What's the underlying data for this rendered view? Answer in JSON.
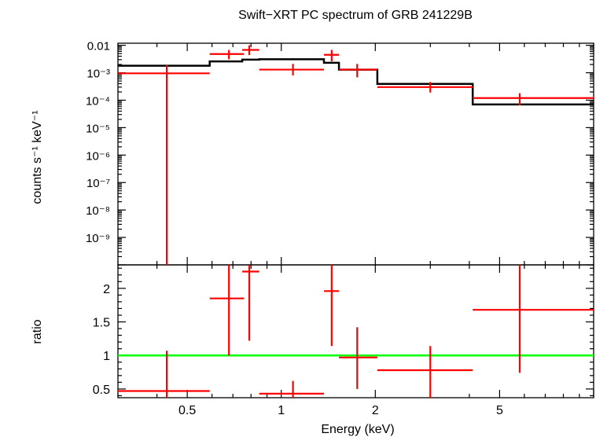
{
  "chart_data": [
    {
      "type": "scatter",
      "panel": "top",
      "title": "Swift−XRT PC spectrum of GRB 241229B",
      "xlabel": "",
      "ylabel": "counts s⁻¹ keV⁻¹",
      "xscale": "log",
      "yscale": "log",
      "xlim": [
        0.3,
        10
      ],
      "ylim": [
        1e-10,
        0.0119
      ],
      "y_ticks": [
        {
          "value": 0.01,
          "label": "0.01"
        },
        {
          "value": 0.001,
          "label": "10⁻³"
        },
        {
          "value": 0.0001,
          "label": "10⁻⁴"
        },
        {
          "value": 1e-05,
          "label": "10⁻⁵"
        },
        {
          "value": 1e-06,
          "label": "10⁻⁶"
        },
        {
          "value": 1e-07,
          "label": "10⁻⁷"
        },
        {
          "value": 1e-08,
          "label": "10⁻⁸"
        },
        {
          "value": 1e-09,
          "label": "10⁻⁹"
        }
      ],
      "series": [
        {
          "name": "data",
          "color": "#ff0000",
          "points": [
            {
              "x": 0.43,
              "xlo": 0.3,
              "xhi": 0.59,
              "y": 0.00095,
              "ylo": 1e-10,
              "yhi": 0.0019
            },
            {
              "x": 0.68,
              "xlo": 0.59,
              "xhi": 0.76,
              "y": 0.0048,
              "ylo": 0.0031,
              "yhi": 0.0068
            },
            {
              "x": 0.79,
              "xlo": 0.75,
              "xhi": 0.85,
              "y": 0.0068,
              "ylo": 0.0044,
              "yhi": 0.01
            },
            {
              "x": 1.09,
              "xlo": 0.85,
              "xhi": 1.37,
              "y": 0.0013,
              "ylo": 0.0008,
              "yhi": 0.0021
            },
            {
              "x": 1.45,
              "xlo": 1.37,
              "xhi": 1.53,
              "y": 0.0045,
              "ylo": 0.0026,
              "yhi": 0.0068
            },
            {
              "x": 1.75,
              "xlo": 1.53,
              "xhi": 2.03,
              "y": 0.0013,
              "ylo": 0.00068,
              "yhi": 0.0021
            },
            {
              "x": 3.0,
              "xlo": 2.03,
              "xhi": 4.1,
              "y": 0.0003,
              "ylo": 0.00019,
              "yhi": 0.00046
            },
            {
              "x": 5.8,
              "xlo": 4.1,
              "xhi": 10,
              "y": 0.00012,
              "ylo": 6.5e-05,
              "yhi": 0.00018
            }
          ]
        },
        {
          "name": "model",
          "color": "#000000",
          "style": "step",
          "bins": [
            {
              "xlo": 0.3,
              "xhi": 0.59,
              "y": 0.0018
            },
            {
              "xlo": 0.59,
              "xhi": 0.75,
              "y": 0.0026
            },
            {
              "xlo": 0.75,
              "xhi": 0.85,
              "y": 0.003
            },
            {
              "xlo": 0.85,
              "xhi": 1.37,
              "y": 0.0031
            },
            {
              "xlo": 1.37,
              "xhi": 1.53,
              "y": 0.0023
            },
            {
              "xlo": 1.53,
              "xhi": 2.03,
              "y": 0.0013
            },
            {
              "xlo": 2.03,
              "xhi": 4.1,
              "y": 0.00039
            },
            {
              "xlo": 4.1,
              "xhi": 10,
              "y": 7e-05
            }
          ]
        }
      ]
    },
    {
      "type": "scatter",
      "panel": "bottom",
      "xlabel": "Energy (keV)",
      "ylabel": "ratio",
      "xscale": "log",
      "xlim": [
        0.3,
        10
      ],
      "ylim": [
        0.37,
        2.35
      ],
      "x_ticks": [
        {
          "value": 0.5,
          "label": "0.5"
        },
        {
          "value": 1,
          "label": "1"
        },
        {
          "value": 2,
          "label": "2"
        },
        {
          "value": 5,
          "label": "5"
        }
      ],
      "y_ticks": [
        {
          "value": 0.5,
          "label": "0.5"
        },
        {
          "value": 1,
          "label": "1"
        },
        {
          "value": 1.5,
          "label": "1.5"
        },
        {
          "value": 2,
          "label": "2"
        }
      ],
      "reference_line": {
        "y": 1,
        "color": "#00ff00"
      },
      "series": [
        {
          "name": "ratio",
          "color": "#ff0000",
          "points": [
            {
              "x": 0.43,
              "xlo": 0.3,
              "xhi": 0.59,
              "y": 0.47,
              "ylo": 0.37,
              "yhi": 1.07
            },
            {
              "x": 0.68,
              "xlo": 0.59,
              "xhi": 0.76,
              "y": 1.85,
              "ylo": 1.0,
              "yhi": 2.35
            },
            {
              "x": 0.79,
              "xlo": 0.75,
              "xhi": 0.85,
              "y": 2.25,
              "ylo": 1.22,
              "yhi": 2.35
            },
            {
              "x": 1.09,
              "xlo": 0.85,
              "xhi": 1.37,
              "y": 0.43,
              "ylo": 0.37,
              "yhi": 0.62
            },
            {
              "x": 1.45,
              "xlo": 1.37,
              "xhi": 1.53,
              "y": 1.96,
              "ylo": 1.14,
              "yhi": 2.35
            },
            {
              "x": 1.75,
              "xlo": 1.53,
              "xhi": 2.03,
              "y": 0.97,
              "ylo": 0.5,
              "yhi": 1.42
            },
            {
              "x": 3.0,
              "xlo": 2.03,
              "xhi": 4.1,
              "y": 0.78,
              "ylo": 0.37,
              "yhi": 1.14
            },
            {
              "x": 5.8,
              "xlo": 4.1,
              "xhi": 10,
              "y": 1.68,
              "ylo": 0.74,
              "yhi": 2.35
            }
          ]
        }
      ]
    }
  ]
}
